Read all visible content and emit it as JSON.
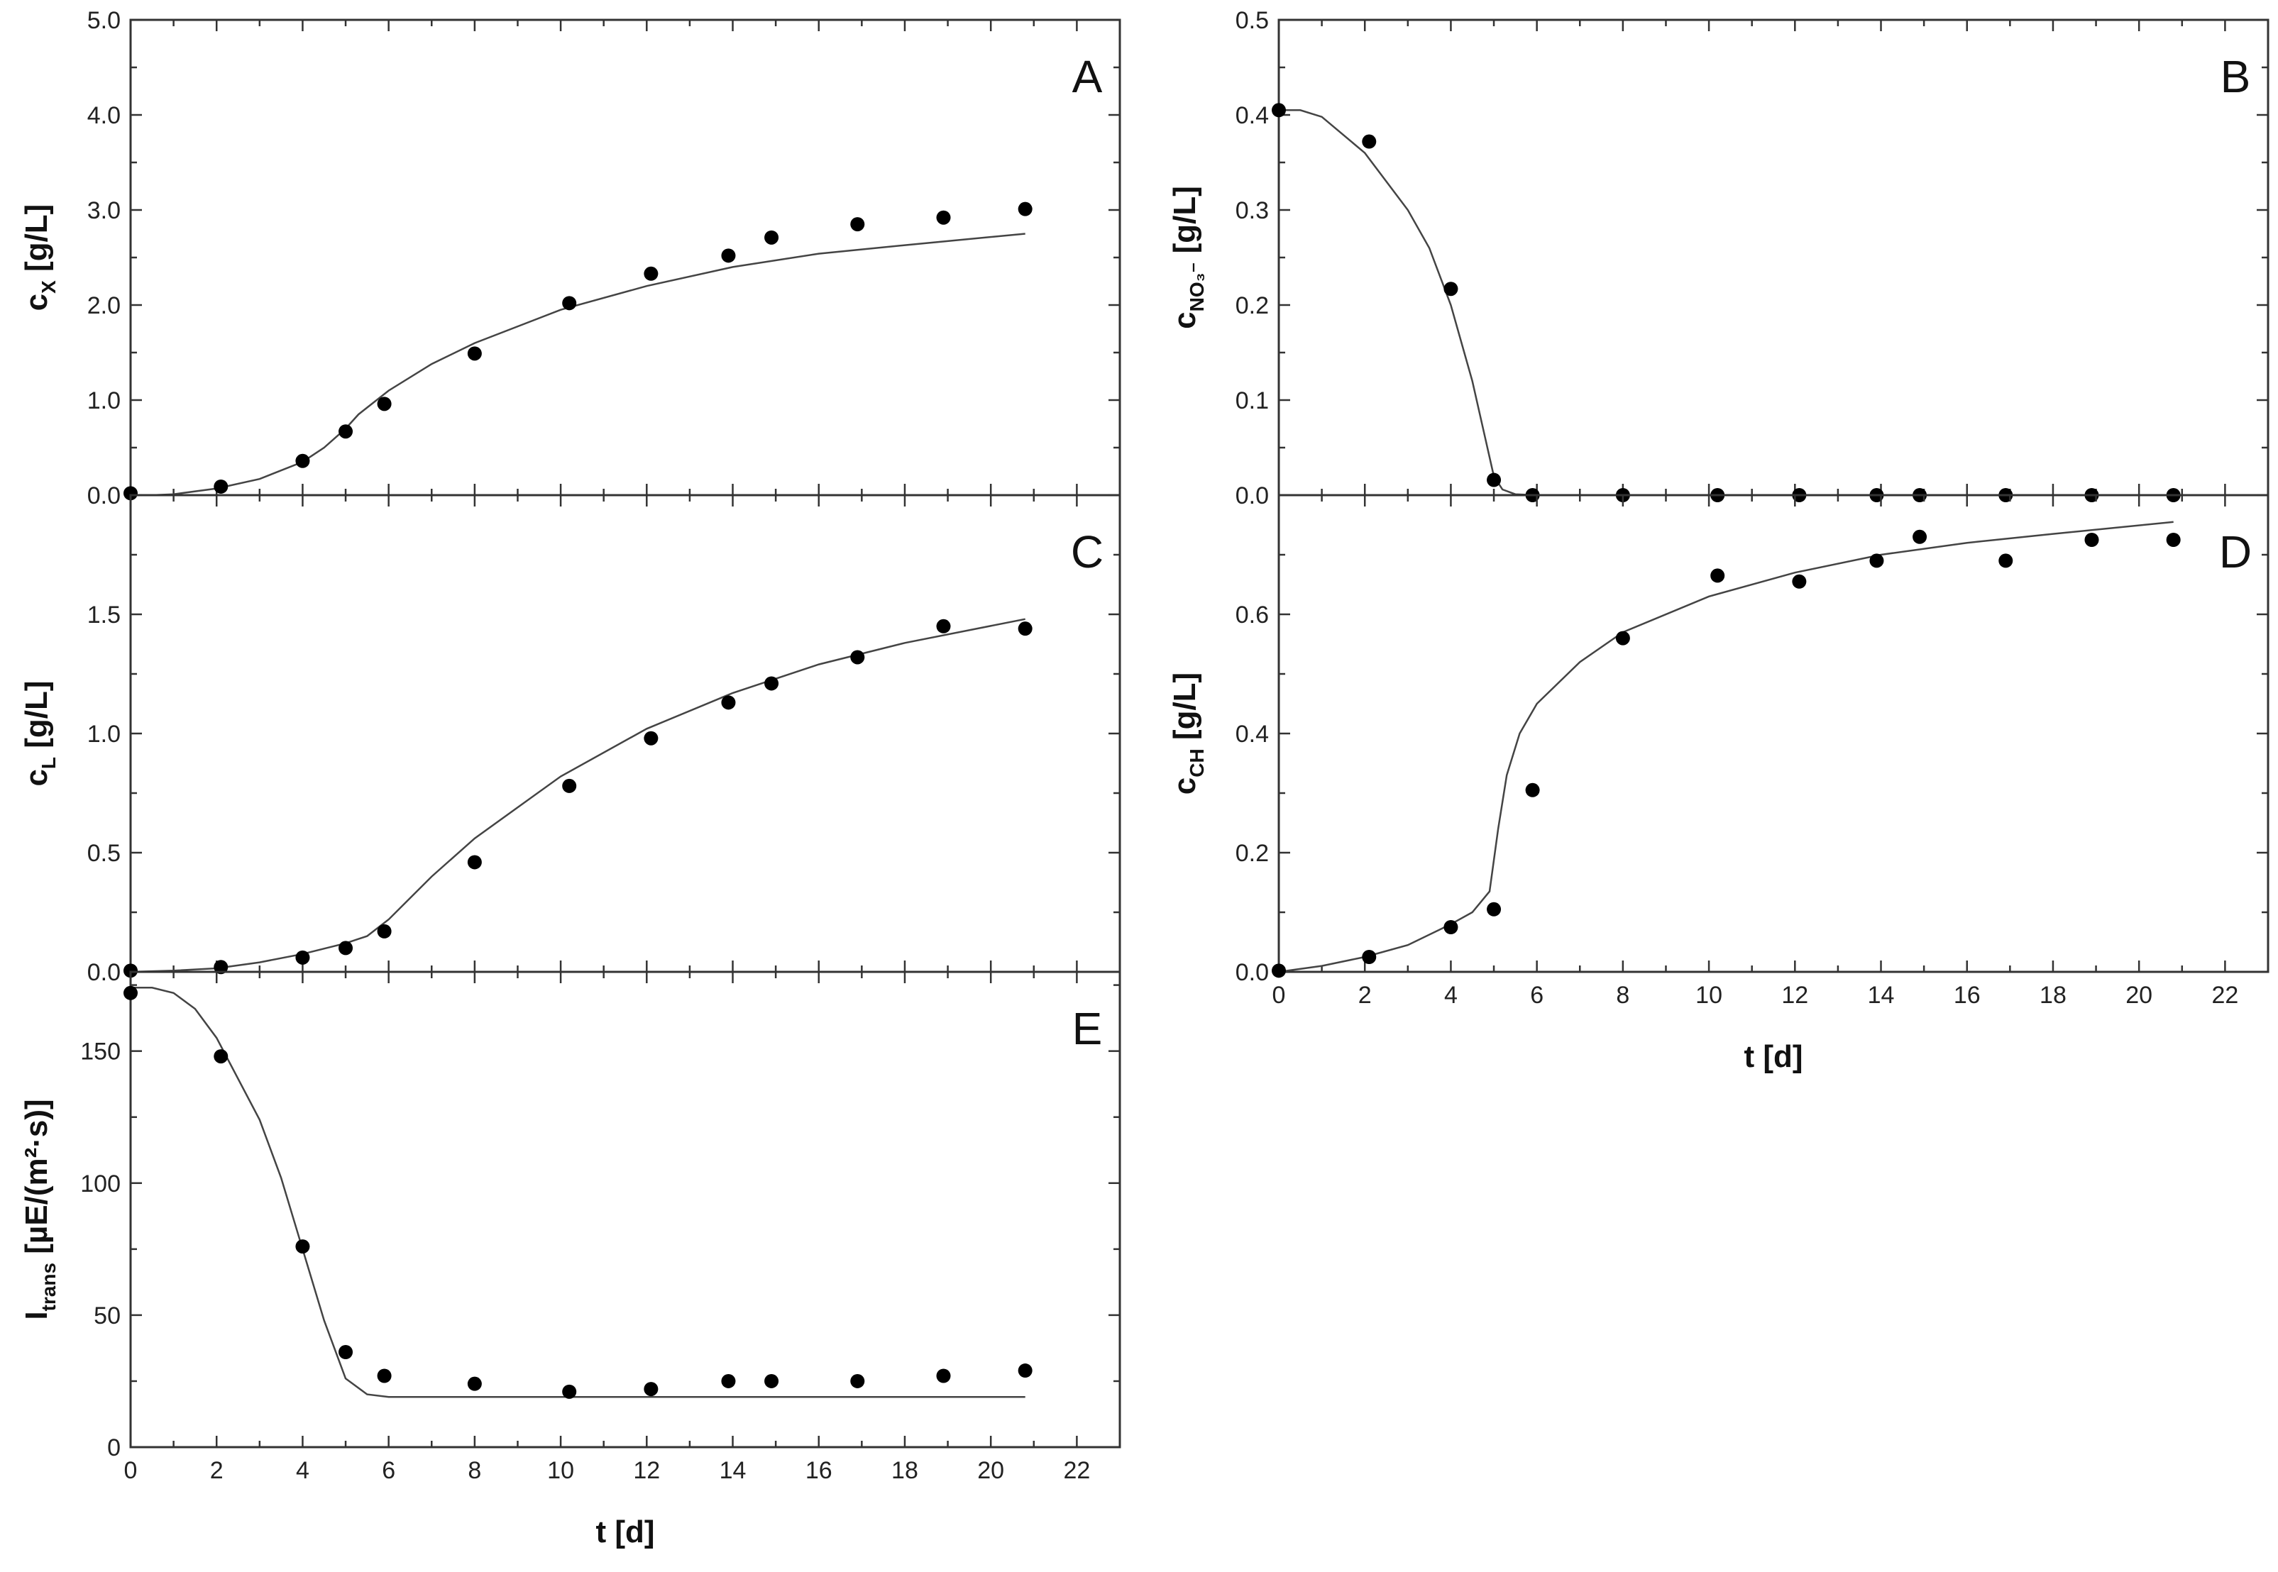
{
  "chart_data": [
    {
      "id": "A",
      "type": "scatter",
      "panel_label": "A",
      "ylabel": "c",
      "ylabel_sub": "X",
      "ylabel_suffix": " [g/L]",
      "xlabel": "",
      "xlim": [
        0,
        23
      ],
      "ylim": [
        0,
        5
      ],
      "xticks": [],
      "yticks": [
        "0.0",
        "1.0",
        "2.0",
        "3.0",
        "4.0",
        "5.0"
      ],
      "series": [
        {
          "kind": "points",
          "x": [
            0,
            2.1,
            4,
            5,
            5.9,
            8,
            10.2,
            12.1,
            13.9,
            14.9,
            16.9,
            18.9,
            20.8
          ],
          "y": [
            0.02,
            0.09,
            0.36,
            0.67,
            0.96,
            1.49,
            2.02,
            2.33,
            2.52,
            2.71,
            2.85,
            2.92,
            3.01
          ]
        },
        {
          "kind": "fit",
          "x": [
            0.5,
            1,
            2,
            3,
            4,
            4.5,
            5,
            5.3,
            6,
            7,
            8,
            10,
            12,
            14,
            16,
            18,
            20.8
          ],
          "y": [
            0.0,
            0.01,
            0.07,
            0.17,
            0.35,
            0.5,
            0.7,
            0.85,
            1.1,
            1.38,
            1.6,
            1.95,
            2.2,
            2.4,
            2.54,
            2.63,
            2.75
          ]
        }
      ]
    },
    {
      "id": "B",
      "type": "scatter",
      "panel_label": "B",
      "ylabel": "c",
      "ylabel_sub": "NO₃⁻",
      "ylabel_suffix": " [g/L]",
      "xlabel": "",
      "xlim": [
        0,
        23
      ],
      "ylim": [
        0,
        0.5
      ],
      "xticks": [],
      "yticks": [
        "0.0",
        "0.1",
        "0.2",
        "0.3",
        "0.4",
        "0.5"
      ],
      "series": [
        {
          "kind": "points",
          "x": [
            0,
            2.1,
            4,
            5,
            5.9,
            8,
            10.2,
            12.1,
            13.9,
            14.9,
            16.9,
            18.9,
            20.8
          ],
          "y": [
            0.405,
            0.372,
            0.217,
            0.016,
            0,
            0,
            0,
            0,
            0,
            0,
            0,
            0,
            0
          ]
        },
        {
          "kind": "fit",
          "x": [
            0,
            0.5,
            1,
            2,
            3,
            3.5,
            4,
            4.5,
            4.8,
            5,
            5.2,
            5.5,
            6,
            8,
            10,
            12,
            14,
            16,
            18,
            20.8
          ],
          "y": [
            0.405,
            0.405,
            0.398,
            0.36,
            0.3,
            0.26,
            0.2,
            0.12,
            0.06,
            0.02,
            0.006,
            0.001,
            0,
            0,
            0,
            0,
            0,
            0,
            0,
            0
          ]
        }
      ]
    },
    {
      "id": "C",
      "type": "scatter",
      "panel_label": "C",
      "ylabel": "c",
      "ylabel_sub": "L",
      "ylabel_suffix": " [g/L]",
      "xlabel": "",
      "xlim": [
        0,
        23
      ],
      "ylim": [
        0,
        2.0
      ],
      "xticks": [],
      "yticks": [
        "0.0",
        "0.5",
        "1.0",
        "1.5"
      ],
      "series": [
        {
          "kind": "points",
          "x": [
            0,
            2.1,
            4,
            5,
            5.9,
            8,
            10.2,
            12.1,
            13.9,
            14.9,
            16.9,
            18.9,
            20.8
          ],
          "y": [
            0.005,
            0.02,
            0.06,
            0.1,
            0.17,
            0.46,
            0.78,
            0.98,
            1.13,
            1.21,
            1.32,
            1.45,
            1.44
          ]
        },
        {
          "kind": "fit",
          "x": [
            0,
            1,
            2,
            3,
            4,
            5,
            5.5,
            6,
            7,
            8,
            10,
            12,
            14,
            16,
            18,
            20.8
          ],
          "y": [
            0,
            0.005,
            0.015,
            0.04,
            0.075,
            0.12,
            0.15,
            0.22,
            0.4,
            0.56,
            0.82,
            1.02,
            1.17,
            1.29,
            1.38,
            1.48
          ]
        }
      ]
    },
    {
      "id": "D",
      "type": "scatter",
      "panel_label": "D",
      "ylabel": "c",
      "ylabel_sub": "CH",
      "ylabel_suffix": " [g/L]",
      "xlabel": "t [d]",
      "xlim": [
        0,
        23
      ],
      "ylim": [
        0,
        0.8
      ],
      "xticks": [
        "0",
        "2",
        "4",
        "6",
        "8",
        "10",
        "12",
        "14",
        "16",
        "18",
        "20",
        "22"
      ],
      "yticks": [
        "0.0",
        "0.2",
        "0.4",
        "0.6"
      ],
      "series": [
        {
          "kind": "points",
          "x": [
            0,
            2.1,
            4,
            5,
            5.9,
            8,
            10.2,
            12.1,
            13.9,
            14.9,
            16.9,
            18.9,
            20.8
          ],
          "y": [
            0.002,
            0.025,
            0.075,
            0.105,
            0.305,
            0.56,
            0.665,
            0.655,
            0.69,
            0.73,
            0.69,
            0.725,
            0.725
          ]
        },
        {
          "kind": "fit",
          "x": [
            0,
            1,
            2,
            3,
            4,
            4.5,
            4.9,
            5.1,
            5.3,
            5.6,
            6,
            7,
            8,
            10,
            12,
            14,
            16,
            18,
            20.8
          ],
          "y": [
            0,
            0.01,
            0.025,
            0.045,
            0.08,
            0.1,
            0.135,
            0.24,
            0.33,
            0.4,
            0.45,
            0.52,
            0.57,
            0.63,
            0.67,
            0.7,
            0.72,
            0.735,
            0.755
          ]
        }
      ]
    },
    {
      "id": "E",
      "type": "scatter",
      "panel_label": "E",
      "ylabel": "I",
      "ylabel_sub": "trans",
      "ylabel_suffix": " [µE/(m²·s)]",
      "xlabel": "t [d]",
      "xlim": [
        0,
        23
      ],
      "ylim": [
        0,
        180
      ],
      "xticks": [
        "0",
        "2",
        "4",
        "6",
        "8",
        "10",
        "12",
        "14",
        "16",
        "18",
        "20",
        "22"
      ],
      "yticks": [
        "0",
        "50",
        "100",
        "150"
      ],
      "series": [
        {
          "kind": "points",
          "x": [
            0,
            2.1,
            4,
            5,
            5.9,
            8,
            10.2,
            12.1,
            13.9,
            14.9,
            16.9,
            18.9,
            20.8
          ],
          "y": [
            172,
            148,
            76,
            36,
            27,
            24,
            21,
            22,
            25,
            25,
            25,
            27,
            29
          ]
        },
        {
          "kind": "fit",
          "x": [
            0,
            0.5,
            1,
            1.5,
            2,
            3,
            3.5,
            4,
            4.5,
            5,
            5.5,
            6,
            8,
            10,
            12,
            14,
            16,
            18,
            20.8
          ],
          "y": [
            174,
            174,
            172,
            166,
            155,
            124,
            102,
            75,
            48,
            26,
            20,
            19,
            19,
            19,
            19,
            19,
            19,
            19,
            19
          ]
        }
      ]
    }
  ]
}
